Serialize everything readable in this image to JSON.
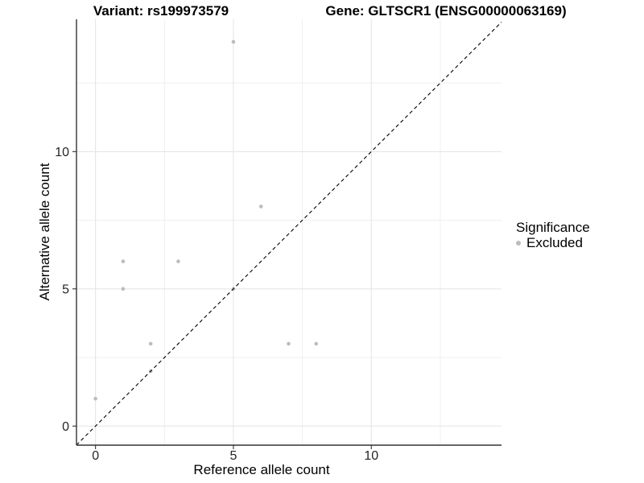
{
  "titles": {
    "variant": "Variant: rs199973579",
    "gene": "Gene: GLTSCR1 (ENSG00000063169)"
  },
  "chart_data": {
    "type": "scatter",
    "xlabel": "Reference allele count",
    "ylabel": "Alternative allele count",
    "xlim": [
      -0.69,
      14.72
    ],
    "ylim": [
      -0.695,
      14.82
    ],
    "x_major_ticks": [
      0,
      5,
      10
    ],
    "y_major_ticks": [
      0,
      5,
      10
    ],
    "x_minor_ticks": [
      2.5,
      7.5,
      12.5
    ],
    "y_minor_ticks": [
      2.5,
      7.5,
      12.5
    ],
    "points": [
      {
        "x": 0,
        "y": 1
      },
      {
        "x": 1,
        "y": 5
      },
      {
        "x": 1,
        "y": 6
      },
      {
        "x": 2,
        "y": 2
      },
      {
        "x": 2,
        "y": 3
      },
      {
        "x": 3,
        "y": 6
      },
      {
        "x": 5,
        "y": 5
      },
      {
        "x": 5,
        "y": 14
      },
      {
        "x": 6,
        "y": 8
      },
      {
        "x": 7,
        "y": 3
      },
      {
        "x": 8,
        "y": 3
      }
    ],
    "identity_line": {
      "slope": 1,
      "intercept": 0,
      "style": "dashed",
      "color": "#000000"
    },
    "grid": true,
    "legend_position": "right",
    "colors": {
      "point": "#bcbcbc",
      "grid_major": "#e3e3e3",
      "grid_minor": "#efefef",
      "axis_line": "#333333",
      "tick_text": "#262626"
    }
  },
  "legend": {
    "title": "Significance",
    "items": [
      {
        "label": "Excluded",
        "color": "#bcbcbc"
      }
    ]
  }
}
